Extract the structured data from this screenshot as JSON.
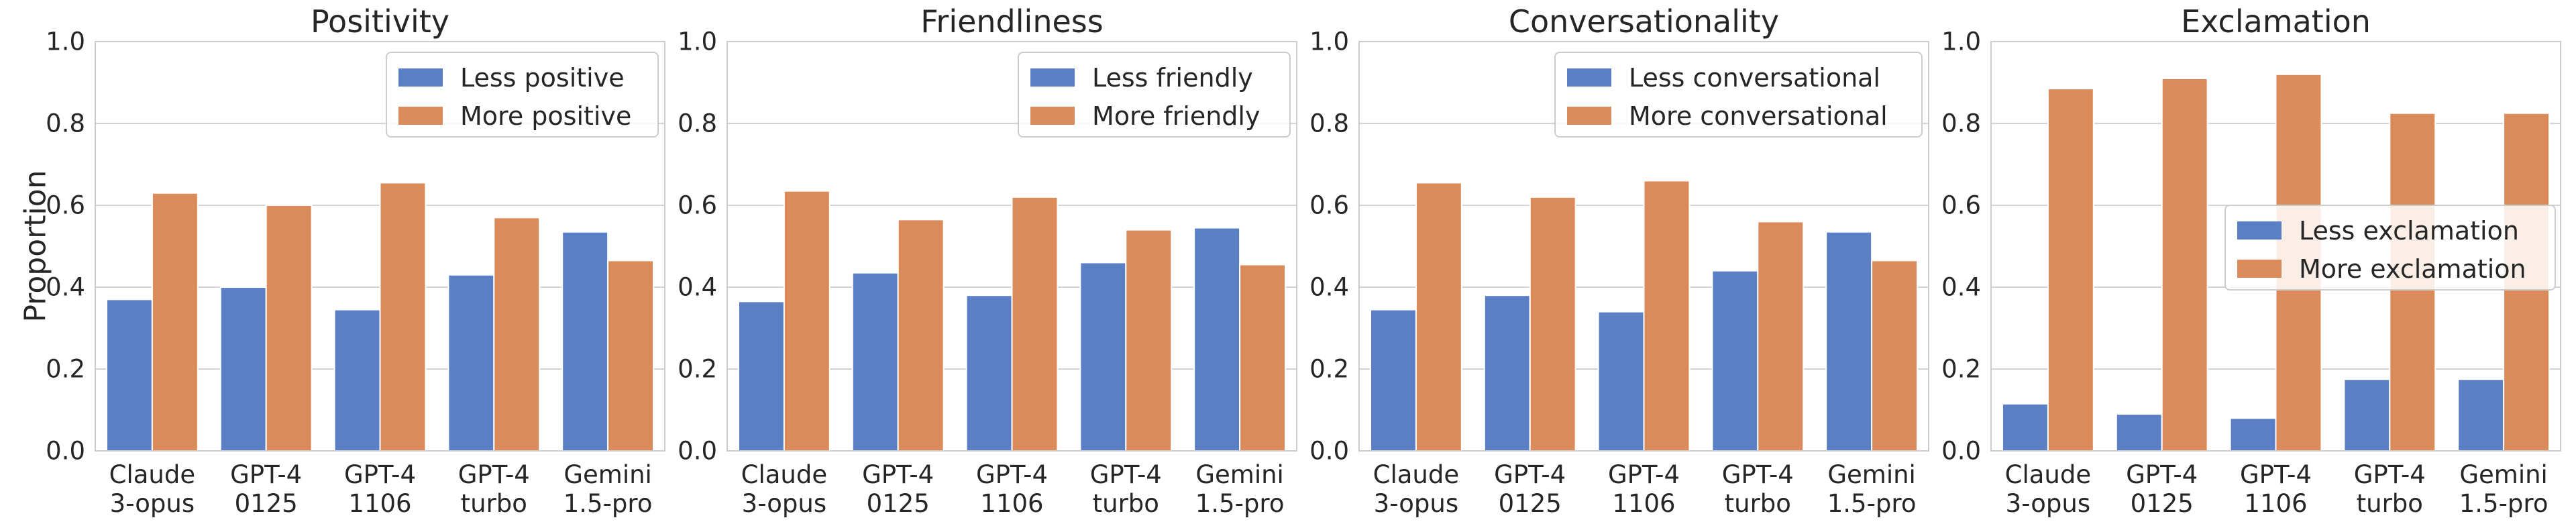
{
  "shared": {
    "ylabel": "Proportion",
    "y_ticks": [
      "0.0",
      "0.2",
      "0.4",
      "0.6",
      "0.8",
      "1.0"
    ],
    "categories": [
      [
        "Claude",
        "3-opus"
      ],
      [
        "GPT-4",
        "0125"
      ],
      [
        "GPT-4",
        "1106"
      ],
      [
        "GPT-4",
        "turbo"
      ],
      [
        "Gemini",
        "1.5-pro"
      ]
    ],
    "colors": {
      "less": "#5b7fc4",
      "more": "#db8a5a"
    }
  },
  "chart_data": [
    {
      "type": "bar",
      "title": "Positivity",
      "categories": [
        "Claude 3-opus",
        "GPT-4 0125",
        "GPT-4 1106",
        "GPT-4 turbo",
        "Gemini 1.5-pro"
      ],
      "series": [
        {
          "name": "Less positive",
          "values": [
            0.37,
            0.4,
            0.345,
            0.43,
            0.535
          ]
        },
        {
          "name": "More positive",
          "values": [
            0.63,
            0.6,
            0.655,
            0.57,
            0.465
          ]
        }
      ],
      "ylim": [
        0,
        1
      ],
      "legend": "top-right",
      "grid": true
    },
    {
      "type": "bar",
      "title": "Friendliness",
      "categories": [
        "Claude 3-opus",
        "GPT-4 0125",
        "GPT-4 1106",
        "GPT-4 turbo",
        "Gemini 1.5-pro"
      ],
      "series": [
        {
          "name": "Less friendly",
          "values": [
            0.365,
            0.435,
            0.38,
            0.46,
            0.545
          ]
        },
        {
          "name": "More friendly",
          "values": [
            0.635,
            0.565,
            0.62,
            0.54,
            0.455
          ]
        }
      ],
      "ylim": [
        0,
        1
      ],
      "legend": "top-right",
      "grid": true
    },
    {
      "type": "bar",
      "title": "Conversationality",
      "categories": [
        "Claude 3-opus",
        "GPT-4 0125",
        "GPT-4 1106",
        "GPT-4 turbo",
        "Gemini 1.5-pro"
      ],
      "series": [
        {
          "name": "Less conversational",
          "values": [
            0.345,
            0.38,
            0.34,
            0.44,
            0.535
          ]
        },
        {
          "name": "More conversational",
          "values": [
            0.655,
            0.62,
            0.66,
            0.56,
            0.465
          ]
        }
      ],
      "ylim": [
        0,
        1
      ],
      "legend": "top-right",
      "grid": true
    },
    {
      "type": "bar",
      "title": "Exclamation",
      "categories": [
        "Claude 3-opus",
        "GPT-4 0125",
        "GPT-4 1106",
        "GPT-4 turbo",
        "Gemini 1.5-pro"
      ],
      "series": [
        {
          "name": "Less exclamation",
          "values": [
            0.115,
            0.09,
            0.08,
            0.175,
            0.175
          ]
        },
        {
          "name": "More exclamation",
          "values": [
            0.885,
            0.91,
            0.92,
            0.825,
            0.825
          ]
        }
      ],
      "ylim": [
        0,
        1
      ],
      "legend": "right",
      "grid": true
    }
  ]
}
